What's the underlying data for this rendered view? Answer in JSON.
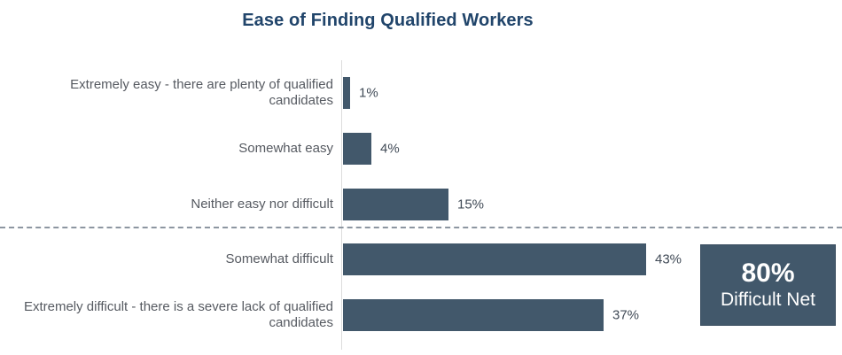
{
  "title": "Ease of Finding Qualified Workers",
  "rows": [
    {
      "label": "Extremely easy - there are plenty of qualified\ncandidates",
      "value": 1,
      "value_label": "1%"
    },
    {
      "label": "Somewhat easy",
      "value": 4,
      "value_label": "4%"
    },
    {
      "label": "Neither easy nor difficult",
      "value": 15,
      "value_label": "15%"
    },
    {
      "label": "Somewhat difficult",
      "value": 43,
      "value_label": "43%"
    },
    {
      "label": "Extremely difficult - there is a severe lack of qualified\ncandidates",
      "value": 37,
      "value_label": "37%"
    }
  ],
  "net_box": {
    "value": "80%",
    "label": "Difficult Net"
  },
  "colors": {
    "bar": "#42586B",
    "title": "#21456B",
    "category_label": "#565A61",
    "value_label": "#414B57",
    "axis_line": "#DCDCDC",
    "dashed_separator": "#8D96A1",
    "net_box_bg": "#42586B",
    "net_box_text": "#FFFFFF"
  },
  "chart_data": {
    "type": "bar",
    "orientation": "horizontal",
    "title": "Ease of Finding Qualified Workers",
    "categories": [
      "Extremely easy - there are plenty of qualified candidates",
      "Somewhat easy",
      "Neither easy nor difficult",
      "Somewhat difficult",
      "Extremely difficult - there is a severe lack of qualified candidates"
    ],
    "values": [
      1,
      4,
      15,
      43,
      37
    ],
    "value_labels": [
      "1%",
      "4%",
      "15%",
      "43%",
      "37%"
    ],
    "xlabel": "",
    "ylabel": "",
    "xlim": [
      0,
      45
    ],
    "grid": false,
    "legend": false,
    "bar_color": "#42586B",
    "annotations": [
      {
        "text": "80% Difficult Net",
        "position": "right of the two bottom (difficult) bars"
      },
      {
        "text": "dashed horizontal separator between 'Neither easy nor difficult' and 'Somewhat difficult'"
      }
    ]
  }
}
